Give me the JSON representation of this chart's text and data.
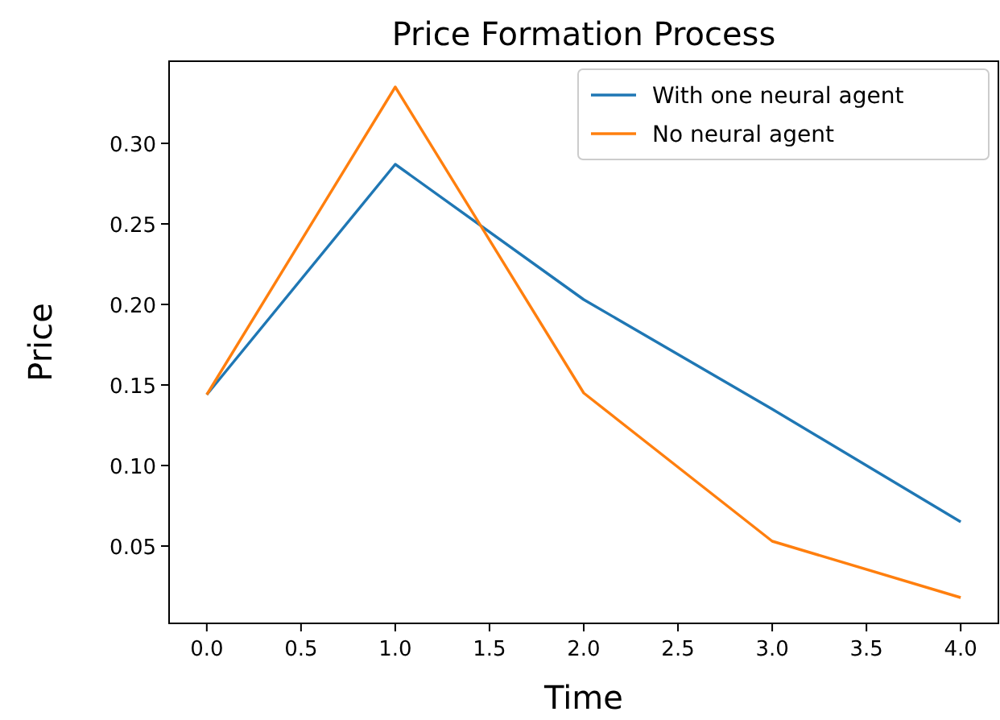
{
  "chart_data": {
    "type": "line",
    "title": "Price Formation Process",
    "xlabel": "Time",
    "ylabel": "Price",
    "x": [
      0,
      1,
      2,
      3,
      4
    ],
    "series": [
      {
        "name": "With one neural agent",
        "color": "#1f77b4",
        "values": [
          0.144,
          0.287,
          0.203,
          0.135,
          0.065
        ]
      },
      {
        "name": "No neural agent",
        "color": "#ff7f0e",
        "values": [
          0.144,
          0.335,
          0.145,
          0.053,
          0.018
        ]
      }
    ],
    "xlim": [
      -0.2,
      4.2
    ],
    "xticks": [
      {
        "value": 0,
        "label": "0.0"
      },
      {
        "value": 0.5,
        "label": "0.5"
      },
      {
        "value": 1,
        "label": "1.0"
      },
      {
        "value": 1.5,
        "label": "1.5"
      },
      {
        "value": 2,
        "label": "2.0"
      },
      {
        "value": 2.5,
        "label": "2.5"
      },
      {
        "value": 3,
        "label": "3.0"
      },
      {
        "value": 3.5,
        "label": "3.5"
      },
      {
        "value": 4,
        "label": "4.0"
      }
    ],
    "ylim": [
      0.002,
      0.351
    ],
    "yticks": [
      {
        "value": 0.05,
        "label": "0.05"
      },
      {
        "value": 0.1,
        "label": "0.10"
      },
      {
        "value": 0.15,
        "label": "0.15"
      },
      {
        "value": 0.2,
        "label": "0.20"
      },
      {
        "value": 0.25,
        "label": "0.25"
      },
      {
        "value": 0.3,
        "label": "0.30"
      }
    ],
    "legend": "top right",
    "grid": false
  }
}
